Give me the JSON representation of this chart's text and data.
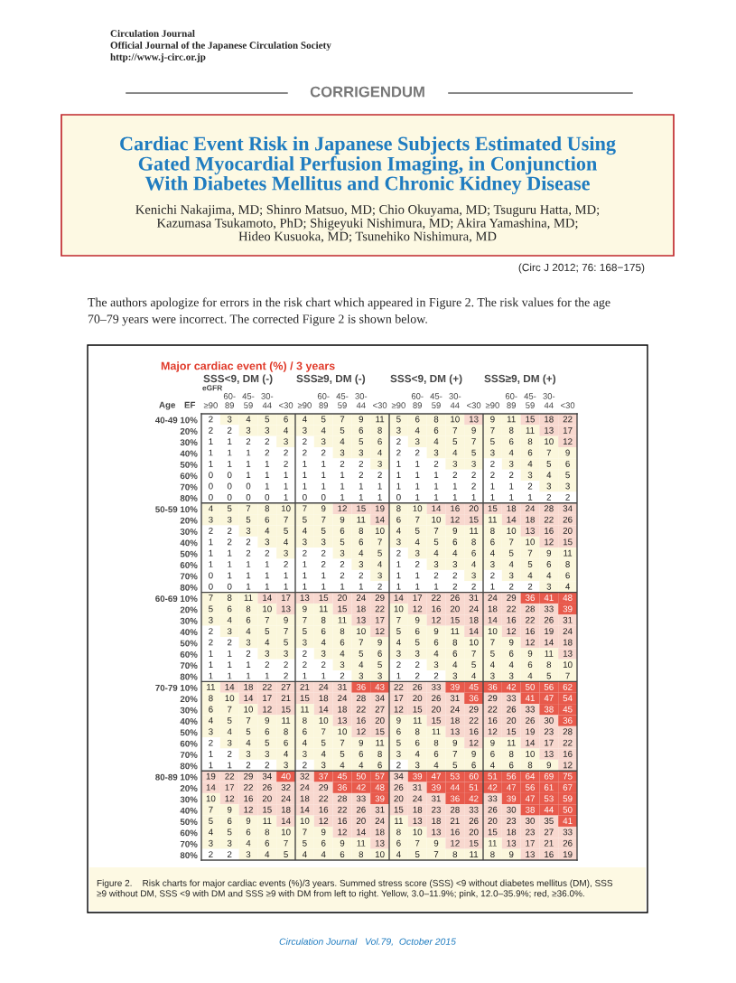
{
  "chart_data": {
    "type": "heatmap",
    "title": "Major cardiac event (%) / 3 years",
    "categories": [
      "≥90",
      "60-\n89",
      "45-\n59",
      "30-\n44",
      "<30",
      "≥90",
      "60-\n89",
      "45-\n59",
      "30-\n44",
      "<30",
      "≥90",
      "60-\n89",
      "45-\n59",
      "30-\n44",
      "<30",
      "≥90",
      "60-\n89",
      "45-\n59",
      "30-\n44",
      "<30"
    ],
    "y_categories": [
      "40-49 10%",
      "20%",
      "30%",
      "40%",
      "50%",
      "60%",
      "70%",
      "80%",
      "50-59 10%",
      "20%",
      "30%",
      "40%",
      "50%",
      "60%",
      "70%",
      "80%",
      "60-69 10%",
      "20%",
      "30%",
      "40%",
      "50%",
      "60%",
      "70%",
      "80%",
      "70-79 10%",
      "20%",
      "30%",
      "40%",
      "50%",
      "60%",
      "70%",
      "80%",
      "80-89 10%",
      "20%",
      "30%",
      "40%",
      "50%",
      "60%",
      "70%",
      "80%"
    ],
    "cells": [
      [
        2,
        3,
        4,
        5,
        6,
        4,
        5,
        7,
        9,
        11,
        5,
        6,
        8,
        10,
        13,
        9,
        11,
        15,
        18,
        22
      ],
      [
        2,
        2,
        3,
        3,
        4,
        3,
        4,
        5,
        6,
        8,
        3,
        4,
        6,
        7,
        9,
        7,
        8,
        11,
        13,
        17
      ],
      [
        1,
        1,
        2,
        2,
        3,
        2,
        3,
        4,
        5,
        6,
        2,
        3,
        4,
        5,
        7,
        5,
        6,
        8,
        10,
        12
      ],
      [
        1,
        1,
        1,
        2,
        2,
        2,
        2,
        3,
        3,
        4,
        2,
        2,
        3,
        4,
        5,
        3,
        4,
        6,
        7,
        9
      ],
      [
        1,
        1,
        1,
        1,
        2,
        1,
        1,
        2,
        2,
        3,
        1,
        1,
        2,
        3,
        3,
        2,
        3,
        4,
        5,
        6
      ],
      [
        0,
        0,
        1,
        1,
        1,
        1,
        1,
        1,
        2,
        2,
        1,
        1,
        1,
        2,
        2,
        2,
        2,
        3,
        4,
        5
      ],
      [
        0,
        0,
        0,
        1,
        1,
        1,
        1,
        1,
        1,
        1,
        1,
        1,
        1,
        1,
        2,
        1,
        1,
        2,
        3,
        3
      ],
      [
        0,
        0,
        0,
        0,
        1,
        0,
        0,
        1,
        1,
        1,
        0,
        1,
        1,
        1,
        1,
        1,
        1,
        1,
        2,
        2
      ],
      [
        4,
        5,
        7,
        8,
        10,
        7,
        9,
        12,
        15,
        19,
        8,
        10,
        14,
        16,
        20,
        15,
        18,
        24,
        28,
        34
      ],
      [
        3,
        3,
        5,
        6,
        7,
        5,
        7,
        9,
        11,
        14,
        6,
        7,
        10,
        12,
        15,
        11,
        14,
        18,
        22,
        26
      ],
      [
        2,
        2,
        3,
        4,
        5,
        4,
        5,
        6,
        8,
        10,
        4,
        5,
        7,
        9,
        11,
        8,
        10,
        13,
        16,
        20
      ],
      [
        1,
        2,
        2,
        3,
        4,
        3,
        3,
        5,
        6,
        7,
        3,
        4,
        5,
        6,
        8,
        6,
        7,
        10,
        12,
        15
      ],
      [
        1,
        1,
        2,
        2,
        3,
        2,
        2,
        3,
        4,
        5,
        2,
        3,
        4,
        4,
        6,
        4,
        5,
        7,
        9,
        11
      ],
      [
        1,
        1,
        1,
        1,
        2,
        1,
        2,
        2,
        3,
        4,
        1,
        2,
        3,
        3,
        4,
        3,
        4,
        5,
        6,
        8
      ],
      [
        0,
        1,
        1,
        1,
        1,
        1,
        1,
        2,
        2,
        3,
        1,
        1,
        2,
        2,
        3,
        2,
        3,
        4,
        4,
        6
      ],
      [
        0,
        0,
        1,
        1,
        1,
        1,
        1,
        1,
        1,
        2,
        1,
        1,
        1,
        2,
        2,
        1,
        2,
        2,
        3,
        4
      ],
      [
        7,
        8,
        11,
        14,
        17,
        13,
        15,
        20,
        24,
        29,
        14,
        17,
        22,
        26,
        31,
        24,
        29,
        36,
        41,
        48
      ],
      [
        5,
        6,
        8,
        10,
        13,
        9,
        11,
        15,
        18,
        22,
        10,
        12,
        16,
        20,
        24,
        18,
        22,
        28,
        33,
        39
      ],
      [
        3,
        4,
        6,
        7,
        9,
        7,
        8,
        11,
        13,
        17,
        7,
        9,
        12,
        15,
        18,
        14,
        16,
        22,
        26,
        31
      ],
      [
        2,
        3,
        4,
        5,
        7,
        5,
        6,
        8,
        10,
        12,
        5,
        6,
        9,
        11,
        14,
        10,
        12,
        16,
        19,
        24
      ],
      [
        2,
        2,
        3,
        4,
        5,
        3,
        4,
        6,
        7,
        9,
        4,
        5,
        6,
        8,
        10,
        7,
        9,
        12,
        14,
        18
      ],
      [
        1,
        1,
        2,
        3,
        3,
        2,
        3,
        4,
        5,
        6,
        3,
        3,
        4,
        6,
        7,
        5,
        6,
        9,
        11,
        13
      ],
      [
        1,
        1,
        1,
        2,
        2,
        2,
        2,
        3,
        4,
        5,
        2,
        2,
        3,
        4,
        5,
        4,
        4,
        6,
        8,
        10
      ],
      [
        1,
        1,
        1,
        1,
        2,
        1,
        1,
        2,
        3,
        3,
        1,
        2,
        2,
        3,
        4,
        3,
        3,
        4,
        5,
        7
      ],
      [
        11,
        14,
        18,
        22,
        27,
        21,
        24,
        31,
        36,
        43,
        22,
        26,
        33,
        39,
        45,
        36,
        42,
        50,
        56,
        62
      ],
      [
        8,
        10,
        14,
        17,
        21,
        15,
        18,
        24,
        28,
        34,
        17,
        20,
        26,
        31,
        36,
        29,
        33,
        41,
        47,
        54
      ],
      [
        6,
        7,
        10,
        12,
        15,
        11,
        14,
        18,
        22,
        27,
        12,
        15,
        20,
        24,
        29,
        22,
        26,
        33,
        38,
        45
      ],
      [
        4,
        5,
        7,
        9,
        11,
        8,
        10,
        13,
        16,
        20,
        9,
        11,
        15,
        18,
        22,
        16,
        20,
        26,
        30,
        36
      ],
      [
        3,
        4,
        5,
        6,
        8,
        6,
        7,
        10,
        12,
        15,
        6,
        8,
        11,
        13,
        16,
        12,
        15,
        19,
        23,
        28
      ],
      [
        2,
        3,
        4,
        5,
        6,
        4,
        5,
        7,
        9,
        11,
        5,
        6,
        8,
        9,
        12,
        9,
        11,
        14,
        17,
        22
      ],
      [
        1,
        2,
        3,
        3,
        4,
        3,
        4,
        5,
        6,
        8,
        3,
        4,
        6,
        7,
        9,
        6,
        8,
        10,
        13,
        16
      ],
      [
        1,
        1,
        2,
        2,
        3,
        2,
        3,
        4,
        4,
        6,
        2,
        3,
        4,
        5,
        6,
        4,
        6,
        8,
        9,
        12
      ],
      [
        19,
        22,
        29,
        34,
        40,
        32,
        37,
        45,
        50,
        57,
        34,
        39,
        47,
        53,
        60,
        51,
        56,
        64,
        69,
        75
      ],
      [
        14,
        17,
        22,
        26,
        32,
        24,
        29,
        36,
        42,
        48,
        26,
        31,
        39,
        44,
        51,
        42,
        47,
        56,
        61,
        67
      ],
      [
        10,
        12,
        16,
        20,
        24,
        18,
        22,
        28,
        33,
        39,
        20,
        24,
        31,
        36,
        42,
        33,
        39,
        47,
        53,
        59
      ],
      [
        7,
        9,
        12,
        15,
        18,
        14,
        16,
        22,
        26,
        31,
        15,
        18,
        23,
        28,
        33,
        26,
        30,
        38,
        44,
        50
      ],
      [
        5,
        6,
        9,
        11,
        14,
        10,
        12,
        16,
        20,
        24,
        11,
        13,
        18,
        21,
        26,
        20,
        23,
        30,
        35,
        41
      ],
      [
        4,
        5,
        6,
        8,
        10,
        7,
        9,
        12,
        14,
        18,
        8,
        10,
        13,
        16,
        20,
        15,
        18,
        23,
        27,
        33
      ],
      [
        3,
        3,
        4,
        6,
        7,
        5,
        6,
        9,
        11,
        13,
        6,
        7,
        9,
        12,
        15,
        11,
        13,
        17,
        21,
        26
      ],
      [
        2,
        2,
        3,
        4,
        5,
        4,
        4,
        6,
        8,
        10,
        4,
        5,
        7,
        8,
        11,
        8,
        9,
        13,
        16,
        19
      ]
    ],
    "data_labels": true,
    "colors": [
      [
        "#ffffff",
        "#fbf7dc",
        "#fbf7dc",
        "#fbf7dc",
        "#fbf7dc",
        "#fbf7dc",
        "#fbf7dc",
        "#fbf7dc",
        "#fbf7dc",
        "#fbf7dc",
        "#fbf7dc",
        "#fbf7dc",
        "#fbf7dc",
        "#fbf7dc",
        "#f8d8cf",
        "#fbf7dc",
        "#fbf7dc",
        "#f8d8cf",
        "#f8d8cf",
        "#f8d8cf"
      ],
      [
        "#ffffff",
        "#ffffff",
        "#fbf7dc",
        "#fbf7dc",
        "#fbf7dc",
        "#fbf7dc",
        "#fbf7dc",
        "#fbf7dc",
        "#fbf7dc",
        "#fbf7dc",
        "#fbf7dc",
        "#fbf7dc",
        "#fbf7dc",
        "#fbf7dc",
        "#fbf7dc",
        "#fbf7dc",
        "#fbf7dc",
        "#fbf7dc",
        "#f8d8cf",
        "#f8d8cf"
      ],
      [
        "#ffffff",
        "#ffffff",
        "#ffffff",
        "#ffffff",
        "#fbf7dc",
        "#ffffff",
        "#fbf7dc",
        "#fbf7dc",
        "#fbf7dc",
        "#fbf7dc",
        "#ffffff",
        "#fbf7dc",
        "#fbf7dc",
        "#fbf7dc",
        "#fbf7dc",
        "#fbf7dc",
        "#fbf7dc",
        "#fbf7dc",
        "#fbf7dc",
        "#f8d8cf"
      ],
      [
        "#ffffff",
        "#ffffff",
        "#ffffff",
        "#ffffff",
        "#ffffff",
        "#ffffff",
        "#ffffff",
        "#fbf7dc",
        "#fbf7dc",
        "#fbf7dc",
        "#ffffff",
        "#ffffff",
        "#fbf7dc",
        "#fbf7dc",
        "#fbf7dc",
        "#fbf7dc",
        "#fbf7dc",
        "#fbf7dc",
        "#fbf7dc",
        "#fbf7dc"
      ],
      [
        "#ffffff",
        "#ffffff",
        "#ffffff",
        "#ffffff",
        "#ffffff",
        "#ffffff",
        "#ffffff",
        "#ffffff",
        "#ffffff",
        "#fbf7dc",
        "#ffffff",
        "#ffffff",
        "#ffffff",
        "#fbf7dc",
        "#fbf7dc",
        "#ffffff",
        "#fbf7dc",
        "#fbf7dc",
        "#fbf7dc",
        "#fbf7dc"
      ],
      [
        "#ffffff",
        "#ffffff",
        "#ffffff",
        "#ffffff",
        "#ffffff",
        "#ffffff",
        "#ffffff",
        "#ffffff",
        "#ffffff",
        "#ffffff",
        "#ffffff",
        "#ffffff",
        "#ffffff",
        "#ffffff",
        "#ffffff",
        "#ffffff",
        "#ffffff",
        "#fbf7dc",
        "#fbf7dc",
        "#fbf7dc"
      ],
      [
        "#ffffff",
        "#ffffff",
        "#ffffff",
        "#ffffff",
        "#ffffff",
        "#ffffff",
        "#ffffff",
        "#ffffff",
        "#ffffff",
        "#ffffff",
        "#ffffff",
        "#ffffff",
        "#ffffff",
        "#ffffff",
        "#ffffff",
        "#ffffff",
        "#ffffff",
        "#ffffff",
        "#fbf7dc",
        "#fbf7dc"
      ],
      [
        "#ffffff",
        "#ffffff",
        "#ffffff",
        "#ffffff",
        "#ffffff",
        "#ffffff",
        "#ffffff",
        "#ffffff",
        "#ffffff",
        "#ffffff",
        "#ffffff",
        "#ffffff",
        "#ffffff",
        "#ffffff",
        "#ffffff",
        "#ffffff",
        "#ffffff",
        "#ffffff",
        "#ffffff",
        "#ffffff"
      ],
      [
        "#fbf7dc",
        "#fbf7dc",
        "#fbf7dc",
        "#fbf7dc",
        "#fbf7dc",
        "#fbf7dc",
        "#fbf7dc",
        "#f8d8cf",
        "#f8d8cf",
        "#f8d8cf",
        "#fbf7dc",
        "#fbf7dc",
        "#f8d8cf",
        "#f8d8cf",
        "#f8d8cf",
        "#f8d8cf",
        "#f8d8cf",
        "#f8d8cf",
        "#f8d8cf",
        "#f8d8cf"
      ],
      [
        "#fbf7dc",
        "#fbf7dc",
        "#fbf7dc",
        "#fbf7dc",
        "#fbf7dc",
        "#fbf7dc",
        "#fbf7dc",
        "#fbf7dc",
        "#fbf7dc",
        "#f8d8cf",
        "#fbf7dc",
        "#fbf7dc",
        "#fbf7dc",
        "#f8d8cf",
        "#f8d8cf",
        "#fbf7dc",
        "#f8d8cf",
        "#f8d8cf",
        "#f8d8cf",
        "#f8d8cf"
      ],
      [
        "#ffffff",
        "#ffffff",
        "#fbf7dc",
        "#fbf7dc",
        "#fbf7dc",
        "#fbf7dc",
        "#fbf7dc",
        "#fbf7dc",
        "#fbf7dc",
        "#fbf7dc",
        "#fbf7dc",
        "#fbf7dc",
        "#fbf7dc",
        "#fbf7dc",
        "#fbf7dc",
        "#fbf7dc",
        "#fbf7dc",
        "#f8d8cf",
        "#f8d8cf",
        "#f8d8cf"
      ],
      [
        "#ffffff",
        "#ffffff",
        "#ffffff",
        "#fbf7dc",
        "#fbf7dc",
        "#fbf7dc",
        "#fbf7dc",
        "#fbf7dc",
        "#fbf7dc",
        "#fbf7dc",
        "#fbf7dc",
        "#fbf7dc",
        "#fbf7dc",
        "#fbf7dc",
        "#fbf7dc",
        "#fbf7dc",
        "#fbf7dc",
        "#fbf7dc",
        "#f8d8cf",
        "#f8d8cf"
      ],
      [
        "#ffffff",
        "#ffffff",
        "#ffffff",
        "#ffffff",
        "#fbf7dc",
        "#ffffff",
        "#ffffff",
        "#fbf7dc",
        "#fbf7dc",
        "#fbf7dc",
        "#ffffff",
        "#fbf7dc",
        "#fbf7dc",
        "#fbf7dc",
        "#fbf7dc",
        "#fbf7dc",
        "#fbf7dc",
        "#fbf7dc",
        "#fbf7dc",
        "#fbf7dc"
      ],
      [
        "#ffffff",
        "#ffffff",
        "#ffffff",
        "#ffffff",
        "#ffffff",
        "#ffffff",
        "#ffffff",
        "#ffffff",
        "#fbf7dc",
        "#fbf7dc",
        "#ffffff",
        "#ffffff",
        "#fbf7dc",
        "#fbf7dc",
        "#fbf7dc",
        "#fbf7dc",
        "#fbf7dc",
        "#fbf7dc",
        "#fbf7dc",
        "#fbf7dc"
      ],
      [
        "#ffffff",
        "#ffffff",
        "#ffffff",
        "#ffffff",
        "#ffffff",
        "#ffffff",
        "#ffffff",
        "#ffffff",
        "#ffffff",
        "#fbf7dc",
        "#ffffff",
        "#ffffff",
        "#ffffff",
        "#ffffff",
        "#fbf7dc",
        "#ffffff",
        "#fbf7dc",
        "#fbf7dc",
        "#fbf7dc",
        "#fbf7dc"
      ],
      [
        "#ffffff",
        "#ffffff",
        "#ffffff",
        "#ffffff",
        "#ffffff",
        "#ffffff",
        "#ffffff",
        "#ffffff",
        "#ffffff",
        "#ffffff",
        "#ffffff",
        "#ffffff",
        "#ffffff",
        "#ffffff",
        "#ffffff",
        "#ffffff",
        "#ffffff",
        "#ffffff",
        "#fbf7dc",
        "#fbf7dc"
      ],
      [
        "#fbf7dc",
        "#fbf7dc",
        "#fbf7dc",
        "#f8d8cf",
        "#f8d8cf",
        "#f8d8cf",
        "#f8d8cf",
        "#f8d8cf",
        "#f8d8cf",
        "#f8d8cf",
        "#f8d8cf",
        "#f8d8cf",
        "#f8d8cf",
        "#f8d8cf",
        "#f8d8cf",
        "#f8d8cf",
        "#f8d8cf",
        "#e85a4c",
        "#e85a4c",
        "#e85a4c"
      ],
      [
        "#fbf7dc",
        "#fbf7dc",
        "#fbf7dc",
        "#fbf7dc",
        "#f8d8cf",
        "#fbf7dc",
        "#fbf7dc",
        "#f8d8cf",
        "#f8d8cf",
        "#f8d8cf",
        "#fbf7dc",
        "#f8d8cf",
        "#f8d8cf",
        "#f8d8cf",
        "#f8d8cf",
        "#f8d8cf",
        "#f8d8cf",
        "#f8d8cf",
        "#f8d8cf",
        "#e85a4c"
      ],
      [
        "#fbf7dc",
        "#fbf7dc",
        "#fbf7dc",
        "#fbf7dc",
        "#fbf7dc",
        "#fbf7dc",
        "#fbf7dc",
        "#fbf7dc",
        "#f8d8cf",
        "#f8d8cf",
        "#fbf7dc",
        "#fbf7dc",
        "#f8d8cf",
        "#f8d8cf",
        "#f8d8cf",
        "#f8d8cf",
        "#f8d8cf",
        "#f8d8cf",
        "#f8d8cf",
        "#f8d8cf"
      ],
      [
        "#ffffff",
        "#fbf7dc",
        "#fbf7dc",
        "#fbf7dc",
        "#fbf7dc",
        "#fbf7dc",
        "#fbf7dc",
        "#fbf7dc",
        "#fbf7dc",
        "#f8d8cf",
        "#fbf7dc",
        "#fbf7dc",
        "#fbf7dc",
        "#fbf7dc",
        "#f8d8cf",
        "#fbf7dc",
        "#f8d8cf",
        "#f8d8cf",
        "#f8d8cf",
        "#f8d8cf"
      ],
      [
        "#ffffff",
        "#ffffff",
        "#fbf7dc",
        "#fbf7dc",
        "#fbf7dc",
        "#fbf7dc",
        "#fbf7dc",
        "#fbf7dc",
        "#fbf7dc",
        "#fbf7dc",
        "#fbf7dc",
        "#fbf7dc",
        "#fbf7dc",
        "#fbf7dc",
        "#fbf7dc",
        "#fbf7dc",
        "#fbf7dc",
        "#f8d8cf",
        "#f8d8cf",
        "#f8d8cf"
      ],
      [
        "#ffffff",
        "#ffffff",
        "#ffffff",
        "#fbf7dc",
        "#fbf7dc",
        "#ffffff",
        "#fbf7dc",
        "#fbf7dc",
        "#fbf7dc",
        "#fbf7dc",
        "#fbf7dc",
        "#fbf7dc",
        "#fbf7dc",
        "#fbf7dc",
        "#fbf7dc",
        "#fbf7dc",
        "#fbf7dc",
        "#fbf7dc",
        "#fbf7dc",
        "#f8d8cf"
      ],
      [
        "#ffffff",
        "#ffffff",
        "#ffffff",
        "#ffffff",
        "#ffffff",
        "#ffffff",
        "#ffffff",
        "#fbf7dc",
        "#fbf7dc",
        "#fbf7dc",
        "#ffffff",
        "#ffffff",
        "#fbf7dc",
        "#fbf7dc",
        "#fbf7dc",
        "#fbf7dc",
        "#fbf7dc",
        "#fbf7dc",
        "#fbf7dc",
        "#fbf7dc"
      ],
      [
        "#ffffff",
        "#ffffff",
        "#ffffff",
        "#ffffff",
        "#ffffff",
        "#ffffff",
        "#ffffff",
        "#ffffff",
        "#fbf7dc",
        "#fbf7dc",
        "#ffffff",
        "#ffffff",
        "#ffffff",
        "#fbf7dc",
        "#fbf7dc",
        "#fbf7dc",
        "#fbf7dc",
        "#fbf7dc",
        "#fbf7dc",
        "#fbf7dc"
      ],
      [
        "#fbf7dc",
        "#f8d8cf",
        "#f8d8cf",
        "#f8d8cf",
        "#f8d8cf",
        "#f8d8cf",
        "#f8d8cf",
        "#f8d8cf",
        "#e85a4c",
        "#e85a4c",
        "#f8d8cf",
        "#f8d8cf",
        "#f8d8cf",
        "#e85a4c",
        "#e85a4c",
        "#e85a4c",
        "#e85a4c",
        "#e85a4c",
        "#e85a4c",
        "#e85a4c"
      ],
      [
        "#fbf7dc",
        "#fbf7dc",
        "#f8d8cf",
        "#f8d8cf",
        "#f8d8cf",
        "#f8d8cf",
        "#f8d8cf",
        "#f8d8cf",
        "#f8d8cf",
        "#f8d8cf",
        "#f8d8cf",
        "#f8d8cf",
        "#f8d8cf",
        "#f8d8cf",
        "#e85a4c",
        "#f8d8cf",
        "#f8d8cf",
        "#e85a4c",
        "#e85a4c",
        "#e85a4c"
      ],
      [
        "#fbf7dc",
        "#fbf7dc",
        "#fbf7dc",
        "#f8d8cf",
        "#f8d8cf",
        "#fbf7dc",
        "#f8d8cf",
        "#f8d8cf",
        "#f8d8cf",
        "#f8d8cf",
        "#f8d8cf",
        "#f8d8cf",
        "#f8d8cf",
        "#f8d8cf",
        "#f8d8cf",
        "#f8d8cf",
        "#f8d8cf",
        "#f8d8cf",
        "#e85a4c",
        "#e85a4c"
      ],
      [
        "#fbf7dc",
        "#fbf7dc",
        "#fbf7dc",
        "#fbf7dc",
        "#fbf7dc",
        "#fbf7dc",
        "#fbf7dc",
        "#f8d8cf",
        "#f8d8cf",
        "#f8d8cf",
        "#fbf7dc",
        "#fbf7dc",
        "#f8d8cf",
        "#f8d8cf",
        "#f8d8cf",
        "#f8d8cf",
        "#f8d8cf",
        "#f8d8cf",
        "#f8d8cf",
        "#e85a4c"
      ],
      [
        "#fbf7dc",
        "#fbf7dc",
        "#fbf7dc",
        "#fbf7dc",
        "#fbf7dc",
        "#fbf7dc",
        "#fbf7dc",
        "#fbf7dc",
        "#f8d8cf",
        "#f8d8cf",
        "#fbf7dc",
        "#fbf7dc",
        "#fbf7dc",
        "#f8d8cf",
        "#f8d8cf",
        "#f8d8cf",
        "#f8d8cf",
        "#f8d8cf",
        "#f8d8cf",
        "#f8d8cf"
      ],
      [
        "#ffffff",
        "#fbf7dc",
        "#fbf7dc",
        "#fbf7dc",
        "#fbf7dc",
        "#fbf7dc",
        "#fbf7dc",
        "#fbf7dc",
        "#fbf7dc",
        "#fbf7dc",
        "#fbf7dc",
        "#fbf7dc",
        "#fbf7dc",
        "#fbf7dc",
        "#f8d8cf",
        "#fbf7dc",
        "#fbf7dc",
        "#f8d8cf",
        "#f8d8cf",
        "#f8d8cf"
      ],
      [
        "#ffffff",
        "#ffffff",
        "#fbf7dc",
        "#fbf7dc",
        "#fbf7dc",
        "#fbf7dc",
        "#fbf7dc",
        "#fbf7dc",
        "#fbf7dc",
        "#fbf7dc",
        "#fbf7dc",
        "#fbf7dc",
        "#fbf7dc",
        "#fbf7dc",
        "#fbf7dc",
        "#fbf7dc",
        "#fbf7dc",
        "#fbf7dc",
        "#f8d8cf",
        "#f8d8cf"
      ],
      [
        "#ffffff",
        "#ffffff",
        "#ffffff",
        "#ffffff",
        "#fbf7dc",
        "#ffffff",
        "#fbf7dc",
        "#fbf7dc",
        "#fbf7dc",
        "#fbf7dc",
        "#ffffff",
        "#fbf7dc",
        "#fbf7dc",
        "#fbf7dc",
        "#fbf7dc",
        "#fbf7dc",
        "#fbf7dc",
        "#fbf7dc",
        "#fbf7dc",
        "#f8d8cf"
      ],
      [
        "#f8d8cf",
        "#f8d8cf",
        "#f8d8cf",
        "#f8d8cf",
        "#e85a4c",
        "#f8d8cf",
        "#e85a4c",
        "#e85a4c",
        "#e85a4c",
        "#e85a4c",
        "#f8d8cf",
        "#e85a4c",
        "#e85a4c",
        "#e85a4c",
        "#e85a4c",
        "#e85a4c",
        "#e85a4c",
        "#e85a4c",
        "#e85a4c",
        "#e85a4c"
      ],
      [
        "#f8d8cf",
        "#f8d8cf",
        "#f8d8cf",
        "#f8d8cf",
        "#f8d8cf",
        "#f8d8cf",
        "#f8d8cf",
        "#e85a4c",
        "#e85a4c",
        "#e85a4c",
        "#f8d8cf",
        "#f8d8cf",
        "#e85a4c",
        "#e85a4c",
        "#e85a4c",
        "#e85a4c",
        "#e85a4c",
        "#e85a4c",
        "#e85a4c",
        "#e85a4c"
      ],
      [
        "#fbf7dc",
        "#f8d8cf",
        "#f8d8cf",
        "#f8d8cf",
        "#f8d8cf",
        "#f8d8cf",
        "#f8d8cf",
        "#f8d8cf",
        "#f8d8cf",
        "#e85a4c",
        "#f8d8cf",
        "#f8d8cf",
        "#f8d8cf",
        "#e85a4c",
        "#e85a4c",
        "#f8d8cf",
        "#e85a4c",
        "#e85a4c",
        "#e85a4c",
        "#e85a4c"
      ],
      [
        "#fbf7dc",
        "#fbf7dc",
        "#f8d8cf",
        "#f8d8cf",
        "#f8d8cf",
        "#f8d8cf",
        "#f8d8cf",
        "#f8d8cf",
        "#f8d8cf",
        "#f8d8cf",
        "#f8d8cf",
        "#f8d8cf",
        "#f8d8cf",
        "#f8d8cf",
        "#f8d8cf",
        "#f8d8cf",
        "#f8d8cf",
        "#e85a4c",
        "#e85a4c",
        "#e85a4c"
      ],
      [
        "#fbf7dc",
        "#fbf7dc",
        "#fbf7dc",
        "#fbf7dc",
        "#f8d8cf",
        "#fbf7dc",
        "#f8d8cf",
        "#f8d8cf",
        "#f8d8cf",
        "#f8d8cf",
        "#fbf7dc",
        "#f8d8cf",
        "#f8d8cf",
        "#f8d8cf",
        "#f8d8cf",
        "#f8d8cf",
        "#f8d8cf",
        "#f8d8cf",
        "#f8d8cf",
        "#e85a4c"
      ],
      [
        "#fbf7dc",
        "#fbf7dc",
        "#fbf7dc",
        "#fbf7dc",
        "#fbf7dc",
        "#fbf7dc",
        "#fbf7dc",
        "#f8d8cf",
        "#f8d8cf",
        "#f8d8cf",
        "#fbf7dc",
        "#fbf7dc",
        "#f8d8cf",
        "#f8d8cf",
        "#f8d8cf",
        "#f8d8cf",
        "#f8d8cf",
        "#f8d8cf",
        "#f8d8cf",
        "#f8d8cf"
      ],
      [
        "#fbf7dc",
        "#fbf7dc",
        "#fbf7dc",
        "#fbf7dc",
        "#fbf7dc",
        "#fbf7dc",
        "#fbf7dc",
        "#fbf7dc",
        "#fbf7dc",
        "#f8d8cf",
        "#fbf7dc",
        "#fbf7dc",
        "#fbf7dc",
        "#f8d8cf",
        "#f8d8cf",
        "#fbf7dc",
        "#f8d8cf",
        "#f8d8cf",
        "#f8d8cf",
        "#f8d8cf"
      ],
      [
        "#ffffff",
        "#ffffff",
        "#fbf7dc",
        "#fbf7dc",
        "#fbf7dc",
        "#fbf7dc",
        "#fbf7dc",
        "#fbf7dc",
        "#fbf7dc",
        "#fbf7dc",
        "#fbf7dc",
        "#fbf7dc",
        "#fbf7dc",
        "#fbf7dc",
        "#fbf7dc",
        "#fbf7dc",
        "#fbf7dc",
        "#f8d8cf",
        "#f8d8cf",
        "#f8d8cf"
      ]
    ],
    "annotations": [
      "Circulation Journal",
      "Official Journal of the Japanese Circulation Society",
      "http://www.j-circ.or.jp",
      "CORRIGENDUM",
      "Cardiac Event Risk in Japanese Subjects Estimated Using\nGated Myocardial Perfusion Imaging, in Conjunction\nWith Diabetes Mellitus and Chronic Kidney Disease",
      "Kenichi Nakajima, MD; Shinro Matsuo, MD; Chio Okuyama, MD; Tsuguru Hatta, MD;\nKazumasa Tsukamoto, PhD; Shigeyuki Nishimura, MD; Akira Yamashina, MD;\nHideo Kusuoka, MD; Tsunehiko Nishimura, MD",
      "(Circ J 2012; 76: 168−175)",
      "The authors apologize for errors in the risk chart which appeared in Figure 2. The risk values for the age\n70–79 years were incorrect. The corrected Figure 2 is shown below.",
      "SSS<9, DM (-)",
      "SSS≥9, DM (-)",
      "SSS<9, DM (+)",
      "SSS≥9, DM (+)",
      "eGFR",
      "Age",
      "EF",
      "Figure 2.    Risk charts for major cardiac events (%)/3 years. Summed stress score (SSS) <9 without diabetes mellitus (DM), SSS\n≥9 without DM, SSS <9 with DM and SSS ≥9 with DM from left to right. Yellow, 3.0–11.9%; pink, 12.0–35.9%; red, ≥36.0%.",
      "Circulation Journal   Vol.79,  October 2015"
    ]
  }
}
